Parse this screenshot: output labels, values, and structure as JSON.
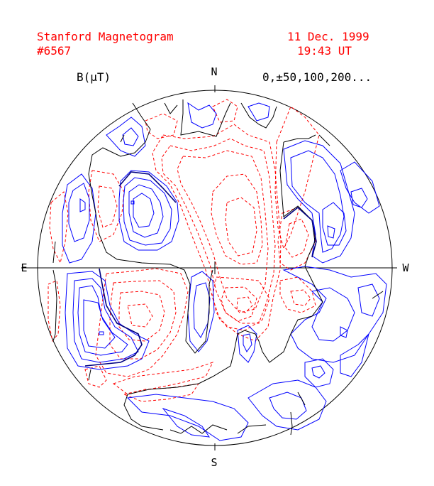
{
  "header": {
    "title": "Stanford Magnetogram",
    "number": "#6567",
    "date": "11 Dec. 1999",
    "time": "19:43 UT"
  },
  "legend": {
    "unit": "B(µT)",
    "levels": "0,±50,100,200..."
  },
  "directions": {
    "north": "N",
    "east": "E",
    "west": "W",
    "south": "S"
  },
  "colors": {
    "negative_contour": "#ff0000",
    "positive_contour": "#0000ff",
    "neutral_line": "#000000",
    "header_text": "#ff0000"
  }
}
